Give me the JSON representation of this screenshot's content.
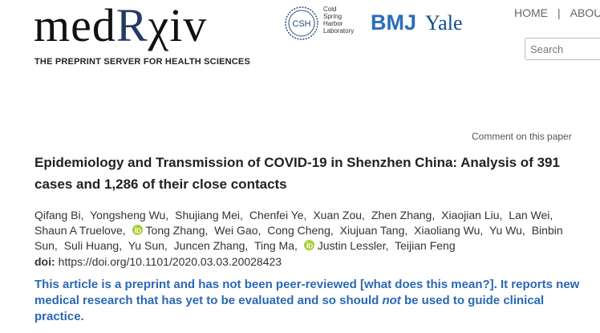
{
  "header": {
    "logo": {
      "part1": "med",
      "part2": "R",
      "part3": "χiv"
    },
    "tagline": "THE PREPRINT SERVER FOR HEALTH SCIENCES",
    "partners": {
      "csh_mark": "CSH",
      "csh_name": [
        "Cold",
        "Spring",
        "Harbor",
        "Laboratory"
      ],
      "bmj": "BMJ",
      "yale": "Yale"
    },
    "nav": {
      "items": [
        "HOME",
        "ABOUT"
      ],
      "separator": "|"
    },
    "search_placeholder": "Search"
  },
  "article": {
    "comment_link": "Comment on this paper",
    "title": "Epidemiology and Transmission of COVID-19 in Shenzhen China: Analysis of 391 cases and 1,286 of their close contacts",
    "authors": [
      {
        "name": "Qifang Bi,",
        "orcid": false
      },
      {
        "name": "Yongsheng Wu,",
        "orcid": false
      },
      {
        "name": "Shujiang Mei,",
        "orcid": false
      },
      {
        "name": "Chenfei Ye,",
        "orcid": false
      },
      {
        "name": "Xuan Zou,",
        "orcid": false
      },
      {
        "name": "Zhen Zhang,",
        "orcid": false
      },
      {
        "name": "Xiaojian Liu,",
        "orcid": false
      },
      {
        "name": "Lan Wei,",
        "orcid": false
      },
      {
        "name": "Shaun A Truelove,",
        "orcid": false
      },
      {
        "name": "Tong Zhang,",
        "orcid": true
      },
      {
        "name": "Wei Gao,",
        "orcid": false
      },
      {
        "name": "Cong Cheng,",
        "orcid": false
      },
      {
        "name": "Xiujuan Tang,",
        "orcid": false
      },
      {
        "name": "Xiaoliang Wu,",
        "orcid": false
      },
      {
        "name": "Yu Wu,",
        "orcid": false
      },
      {
        "name": "Binbin Sun,",
        "orcid": false
      },
      {
        "name": "Suli Huang,",
        "orcid": false
      },
      {
        "name": "Yu Sun,",
        "orcid": false
      },
      {
        "name": "Juncen Zhang,",
        "orcid": false
      },
      {
        "name": "Ting Ma,",
        "orcid": false
      },
      {
        "name": "Justin Lessler,",
        "orcid": true
      },
      {
        "name": "Teijian Feng",
        "orcid": false
      }
    ],
    "doi": {
      "label": "doi:",
      "value": "https://doi.org/10.1101/2020.03.03.20028423"
    },
    "notice": {
      "text1": "This article is a preprint and has not been peer-reviewed ",
      "link": "[what does this mean?]",
      "text2": ". It reports new medical research that has yet to be evaluated and so should ",
      "emphasis": "not",
      "text3": " be used to guide clinical practice."
    }
  }
}
